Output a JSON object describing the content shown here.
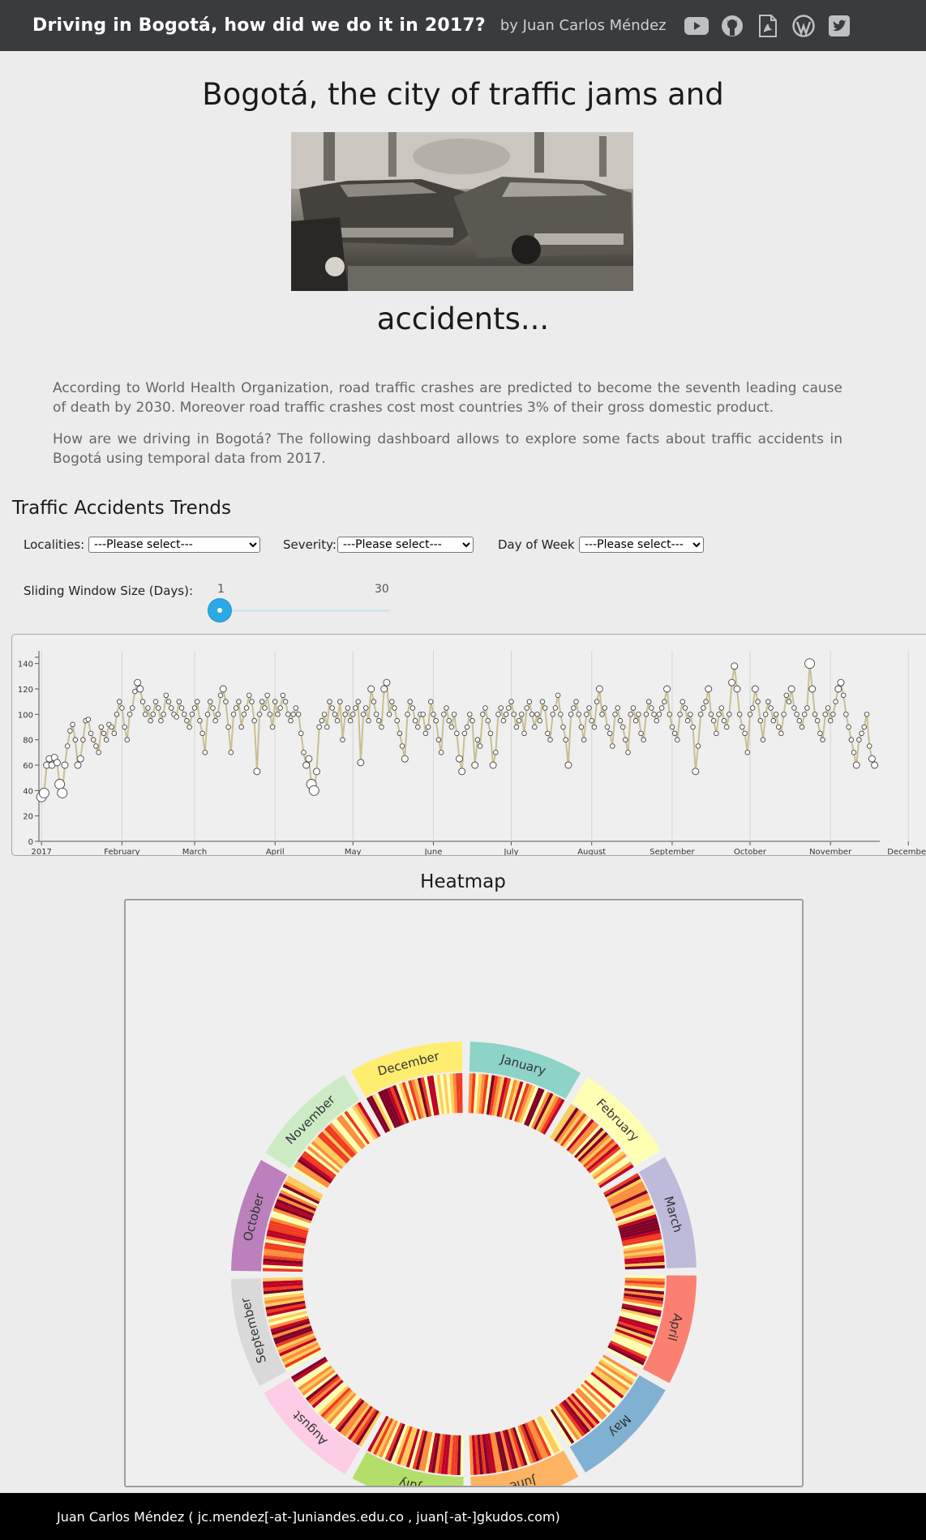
{
  "topbar": {
    "title": "Driving in Bogotá, how did we do it in 2017?",
    "author": "by Juan Carlos Méndez",
    "icons": [
      "youtube-icon",
      "github-icon",
      "pdf-icon",
      "wordpress-icon",
      "twitter-icon"
    ]
  },
  "hero": {
    "title_line1": "Bogotá, the city of traffic jams and",
    "title_line2": "accidents...",
    "image": "black-and-white photo of two crashed cars"
  },
  "intro": {
    "paragraph1": "According to World Health Organization, road traffic crashes are predicted to become the seventh leading cause of death by 2030. Moreover road traffic crashes cost most countries 3% of their gross domestic product.",
    "paragraph2": "How are we driving in Bogotá? The following dashboard allows to explore some facts about traffic accidents in Bogotá using temporal data from 2017."
  },
  "trends": {
    "title": "Traffic Accidents Trends",
    "filters": {
      "localities_label": "Localities:",
      "localities_value": "---Please select---",
      "severity_label": "Severity:",
      "severity_value": "---Please select---",
      "dow_label": "Day of Week :",
      "dow_value": "---Please select---"
    },
    "slider": {
      "label": "Sliding Window Size (Days):",
      "min_label": "1",
      "max_label": "30",
      "min": 1,
      "max": 30,
      "value": 1
    }
  },
  "chart_data": [
    {
      "type": "line",
      "ylim": [
        0,
        150
      ],
      "y_ticks": [
        "0",
        "20",
        "40",
        "60",
        "80",
        "100",
        "120",
        "140"
      ],
      "x_ticks": [
        "2017",
        "February",
        "March",
        "April",
        "May",
        "June",
        "July",
        "August",
        "September",
        "October",
        "November",
        "December"
      ],
      "xlabel": "",
      "ylabel": "",
      "line_color": "#c9bf91",
      "grid": true,
      "x_range": [
        "2017-01-01",
        "2017-12-31"
      ],
      "series": [
        {
          "values": [
            35,
            38,
            60,
            65,
            60,
            66,
            62,
            45,
            38,
            60,
            75,
            87,
            92,
            80,
            60,
            65,
            80,
            95,
            96,
            85,
            80,
            75,
            70,
            90,
            85,
            80,
            92,
            90,
            85,
            100,
            110,
            105,
            90,
            80,
            100,
            105,
            118,
            125,
            120,
            110,
            100,
            105,
            95,
            100,
            110,
            105,
            95,
            100,
            115,
            110,
            105,
            100,
            98,
            110,
            105,
            100,
            95,
            90,
            100,
            105,
            110,
            95,
            85,
            70,
            100,
            110,
            105,
            95,
            100,
            115,
            120,
            110,
            90,
            70,
            100,
            105,
            110,
            90,
            100,
            105,
            115,
            110,
            95,
            55,
            100,
            110,
            105,
            115,
            100,
            90,
            110,
            100,
            105,
            115,
            110,
            100,
            95,
            100,
            105,
            100,
            85,
            70,
            60,
            65,
            45,
            40,
            55,
            90,
            95,
            100,
            90,
            110,
            105,
            100,
            95,
            110,
            80,
            100,
            105,
            95,
            100,
            105,
            110,
            62,
            100,
            105,
            95,
            120,
            110,
            100,
            95,
            90,
            120,
            125,
            100,
            110,
            105,
            95,
            85,
            75,
            65,
            100,
            110,
            105,
            95,
            90,
            100,
            100,
            85,
            90,
            110,
            100,
            95,
            80,
            70,
            100,
            105,
            95,
            90,
            100,
            85,
            65,
            55,
            85,
            90,
            100,
            95,
            60,
            80,
            75,
            100,
            105,
            95,
            85,
            60,
            70,
            100,
            105,
            95,
            100,
            105,
            110,
            100,
            90,
            95,
            100,
            85,
            105,
            110,
            100,
            90,
            100,
            95,
            110,
            105,
            85,
            80,
            100,
            105,
            115,
            100,
            90,
            80,
            60,
            100,
            105,
            110,
            100,
            90,
            80,
            100,
            105,
            95,
            90,
            110,
            120,
            100,
            105,
            90,
            85,
            75,
            100,
            105,
            95,
            90,
            80,
            70,
            100,
            105,
            95,
            100,
            85,
            80,
            100,
            110,
            105,
            100,
            95,
            100,
            105,
            110,
            120,
            100,
            90,
            85,
            80,
            100,
            110,
            105,
            95,
            100,
            90,
            55,
            75,
            100,
            105,
            110,
            120,
            100,
            95,
            85,
            100,
            105,
            95,
            90,
            100,
            125,
            138,
            120,
            100,
            90,
            85,
            70,
            100,
            105,
            120,
            110,
            95,
            80,
            100,
            110,
            105,
            95,
            100,
            90,
            85,
            100,
            115,
            110,
            120,
            105,
            100,
            95,
            90,
            100,
            105,
            140,
            120,
            100,
            95,
            85,
            80,
            100,
            105,
            95,
            100,
            110,
            120,
            125,
            115,
            100,
            90,
            80,
            70,
            60,
            80,
            85,
            90,
            100,
            75,
            65,
            60
          ]
        }
      ]
    },
    {
      "type": "heatmap",
      "title": "Heatmap",
      "layout": "radial",
      "months": [
        {
          "name": "January",
          "color": "#8dd3c7"
        },
        {
          "name": "February",
          "color": "#ffffb3"
        },
        {
          "name": "March",
          "color": "#bebada"
        },
        {
          "name": "April",
          "color": "#fb8072"
        },
        {
          "name": "May",
          "color": "#80b1d3"
        },
        {
          "name": "June",
          "color": "#fdb462"
        },
        {
          "name": "July",
          "color": "#b3de69"
        },
        {
          "name": "August",
          "color": "#fccde5"
        },
        {
          "name": "September",
          "color": "#d9d9d9"
        },
        {
          "name": "October",
          "color": "#bc80bd"
        },
        {
          "name": "November",
          "color": "#ccebc5"
        },
        {
          "name": "December",
          "color": "#ffed6f"
        }
      ],
      "days_per_month": [
        31,
        28,
        31,
        30,
        31,
        30,
        31,
        31,
        30,
        31,
        30,
        31
      ],
      "color_scale": [
        "#ffffb2",
        "#fecc5c",
        "#fd8d3c",
        "#f03b20",
        "#bd0026",
        "#800026"
      ]
    }
  ],
  "heatmap": {
    "title": "Heatmap"
  },
  "footer": {
    "text": "Juan Carlos Méndez ( jc.mendez[-at-]uniandes.edu.co , juan[-at-]gkudos.com)"
  }
}
